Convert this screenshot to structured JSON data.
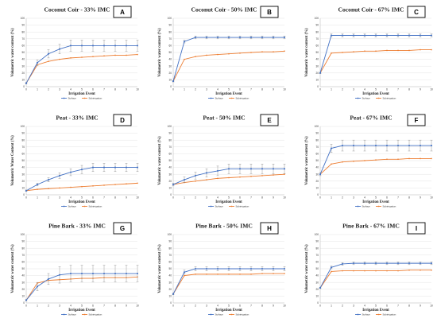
{
  "figure": {
    "colors": {
      "surface": "#4472c4",
      "subirrigation": "#ed7d31",
      "grid": "#d9d9d9",
      "axis": "#bfbfbf",
      "errorbar": "#8c8c8c"
    }
  },
  "chart_data": [
    {
      "type": "line",
      "panel": "A",
      "title": "Coconut Coir - 33% IMC",
      "xlabel": "Irrigation Event",
      "ylabel": "Volumetric water content (%)",
      "x": [
        0,
        1,
        2,
        3,
        4,
        5,
        6,
        7,
        8,
        9,
        10
      ],
      "xlim": [
        0,
        10
      ],
      "ylim": [
        0,
        100
      ],
      "yticks": [
        0,
        10,
        20,
        30,
        40,
        50,
        60,
        70,
        80,
        90,
        100
      ],
      "legend": "bottom",
      "grid": true,
      "series": [
        {
          "name": "Surface",
          "values": [
            5,
            35,
            48,
            55,
            60,
            60,
            60,
            60,
            60,
            60,
            60
          ],
          "error": [
            1,
            4,
            6,
            7,
            8,
            8,
            8,
            8,
            8,
            8,
            8
          ]
        },
        {
          "name": "Subirrigation",
          "values": [
            5,
            32,
            37,
            40,
            42,
            43,
            44,
            45,
            46,
            46,
            47
          ]
        }
      ]
    },
    {
      "type": "line",
      "panel": "B",
      "title": "Coconut Coir - 50% IMC",
      "xlabel": "Irrigation Event",
      "ylabel": "Volumetric water content (%)",
      "x": [
        0,
        1,
        2,
        3,
        4,
        5,
        6,
        7,
        8,
        9,
        10
      ],
      "xlim": [
        0,
        10
      ],
      "ylim": [
        0,
        100
      ],
      "yticks": [
        0,
        10,
        20,
        30,
        40,
        50,
        60,
        70,
        80,
        90,
        100
      ],
      "legend": "bottom",
      "grid": true,
      "series": [
        {
          "name": "Surface",
          "values": [
            8,
            66,
            72,
            72,
            72,
            72,
            72,
            72,
            72,
            72,
            72
          ],
          "error": [
            1,
            2,
            2,
            2,
            2,
            2,
            2,
            2,
            2,
            2,
            2
          ]
        },
        {
          "name": "Subirrigation",
          "values": [
            8,
            40,
            44,
            46,
            47,
            48,
            49,
            50,
            51,
            51,
            52
          ]
        }
      ]
    },
    {
      "type": "line",
      "panel": "C",
      "title": "Coconut Coir - 67% IMC",
      "xlabel": "Irrigation Event",
      "ylabel": "Volumetric water content (%)",
      "x": [
        0,
        1,
        2,
        3,
        4,
        5,
        6,
        7,
        8,
        9,
        10
      ],
      "xlim": [
        0,
        10
      ],
      "ylim": [
        0,
        100
      ],
      "yticks": [
        0,
        10,
        20,
        30,
        40,
        50,
        60,
        70,
        80,
        90,
        100
      ],
      "legend": "bottom",
      "grid": true,
      "series": [
        {
          "name": "Surface",
          "values": [
            20,
            75,
            75,
            75,
            75,
            75,
            75,
            75,
            75,
            75,
            75
          ],
          "error": [
            1,
            2,
            2,
            2,
            2,
            2,
            2,
            2,
            2,
            2,
            2
          ]
        },
        {
          "name": "Subirrigation",
          "values": [
            20,
            49,
            50,
            51,
            52,
            52,
            53,
            53,
            53,
            54,
            54
          ]
        }
      ]
    },
    {
      "type": "line",
      "panel": "D",
      "title": "Peat - 33% IMC",
      "xlabel": "Irrigation Event",
      "ylabel": "Volumetric Water Content (%)",
      "x": [
        0,
        1,
        2,
        3,
        4,
        5,
        6,
        7,
        8,
        9,
        10
      ],
      "xlim": [
        0,
        10
      ],
      "ylim": [
        0,
        100
      ],
      "yticks": [
        0,
        10,
        20,
        30,
        40,
        50,
        60,
        70,
        80,
        90,
        100
      ],
      "legend": "bottom",
      "grid": true,
      "series": [
        {
          "name": "Surface",
          "values": [
            6,
            15,
            22,
            28,
            33,
            37,
            40,
            40,
            40,
            40,
            40
          ],
          "error": [
            1,
            2,
            3,
            4,
            5,
            6,
            6,
            6,
            6,
            6,
            6
          ]
        },
        {
          "name": "Subirrigation",
          "values": [
            6,
            8,
            9,
            10,
            11,
            12,
            13,
            14,
            15,
            16,
            17
          ]
        }
      ]
    },
    {
      "type": "line",
      "panel": "E",
      "title": "Peat - 50% IMC",
      "xlabel": "Irrigation Event",
      "ylabel": "Volumetric water content (%)",
      "x": [
        0,
        1,
        2,
        3,
        4,
        5,
        6,
        7,
        8,
        9,
        10
      ],
      "xlim": [
        0,
        10
      ],
      "ylim": [
        0,
        100
      ],
      "yticks": [
        0,
        10,
        20,
        30,
        40,
        50,
        60,
        70,
        80,
        90,
        100
      ],
      "legend": "bottom",
      "grid": true,
      "series": [
        {
          "name": "Surface",
          "values": [
            15,
            22,
            28,
            32,
            35,
            38,
            38,
            38,
            38,
            38,
            38
          ],
          "error": [
            2,
            4,
            5,
            6,
            7,
            7,
            7,
            7,
            7,
            7,
            7
          ]
        },
        {
          "name": "Subirrigation",
          "values": [
            15,
            18,
            20,
            22,
            24,
            25,
            26,
            27,
            28,
            29,
            30
          ]
        }
      ]
    },
    {
      "type": "line",
      "panel": "F",
      "title": "Peat - 67% IMC",
      "xlabel": "Irrigation Event",
      "ylabel": "Volumetric water content (%)",
      "x": [
        0,
        1,
        2,
        3,
        4,
        5,
        6,
        7,
        8,
        9,
        10
      ],
      "xlim": [
        0,
        10
      ],
      "ylim": [
        0,
        100
      ],
      "yticks": [
        0,
        10,
        20,
        30,
        40,
        50,
        60,
        70,
        80,
        90,
        100
      ],
      "legend": "bottom",
      "grid": true,
      "series": [
        {
          "name": "Surface",
          "values": [
            30,
            68,
            72,
            72,
            72,
            72,
            72,
            72,
            72,
            72,
            72
          ],
          "error": [
            2,
            6,
            8,
            8,
            8,
            8,
            8,
            8,
            8,
            8,
            8
          ]
        },
        {
          "name": "Subirrigation",
          "values": [
            30,
            45,
            48,
            49,
            50,
            51,
            52,
            52,
            53,
            53,
            53
          ]
        }
      ]
    },
    {
      "type": "line",
      "panel": "G",
      "title": "Pine Bark - 33% IMC",
      "xlabel": "Irrigation Event",
      "ylabel": "Volumetric water content (%)",
      "x": [
        0,
        1,
        2,
        3,
        4,
        5,
        6,
        7,
        8,
        9,
        10
      ],
      "xlim": [
        0,
        10
      ],
      "ylim": [
        0,
        100
      ],
      "yticks": [
        0,
        10,
        20,
        30,
        40,
        50,
        60,
        70,
        80,
        90,
        100
      ],
      "legend": "bottom",
      "grid": true,
      "series": [
        {
          "name": "Surface",
          "values": [
            4,
            24,
            35,
            41,
            43,
            43,
            43,
            43,
            43,
            43,
            43
          ],
          "error": [
            1,
            6,
            8,
            12,
            12,
            12,
            12,
            12,
            12,
            12,
            12
          ]
        },
        {
          "name": "Subirrigation",
          "values": [
            4,
            29,
            33,
            34,
            35,
            36,
            36,
            37,
            37,
            37,
            38
          ]
        }
      ]
    },
    {
      "type": "line",
      "panel": "H",
      "title": "Pine Bark - 50% IMC",
      "xlabel": "Irrigation Event",
      "ylabel": "Volumetric water content (%)",
      "x": [
        0,
        1,
        2,
        3,
        4,
        5,
        6,
        7,
        8,
        9,
        10
      ],
      "xlim": [
        0,
        10
      ],
      "ylim": [
        0,
        100
      ],
      "yticks": [
        0,
        10,
        20,
        30,
        40,
        50,
        60,
        70,
        80,
        90,
        100
      ],
      "legend": "bottom",
      "grid": true,
      "series": [
        {
          "name": "Surface",
          "values": [
            13,
            45,
            50,
            50,
            50,
            50,
            50,
            50,
            50,
            50,
            50
          ],
          "error": [
            1,
            3,
            3,
            3,
            3,
            3,
            3,
            3,
            3,
            3,
            3
          ]
        },
        {
          "name": "Subirrigation",
          "values": [
            13,
            40,
            42,
            42,
            42,
            42,
            42,
            42,
            43,
            43,
            43
          ]
        }
      ]
    },
    {
      "type": "line",
      "panel": "I",
      "title": "Pine Bark - 67% IMC",
      "xlabel": "Irrigation Event",
      "ylabel": "Volumetric water content (%)",
      "x": [
        0,
        1,
        2,
        3,
        4,
        5,
        6,
        7,
        8,
        9,
        10
      ],
      "xlim": [
        0,
        10
      ],
      "ylim": [
        0,
        100
      ],
      "yticks": [
        0,
        10,
        20,
        30,
        40,
        50,
        60,
        70,
        80,
        90,
        100
      ],
      "legend": "bottom",
      "grid": true,
      "series": [
        {
          "name": "Surface",
          "values": [
            22,
            52,
            57,
            58,
            58,
            58,
            58,
            58,
            58,
            58,
            58
          ],
          "error": [
            1,
            2,
            2,
            2,
            2,
            2,
            2,
            2,
            2,
            2,
            2
          ]
        },
        {
          "name": "Subirrigation",
          "values": [
            22,
            46,
            47,
            47,
            47,
            47,
            47,
            47,
            48,
            48,
            48
          ]
        }
      ]
    }
  ]
}
